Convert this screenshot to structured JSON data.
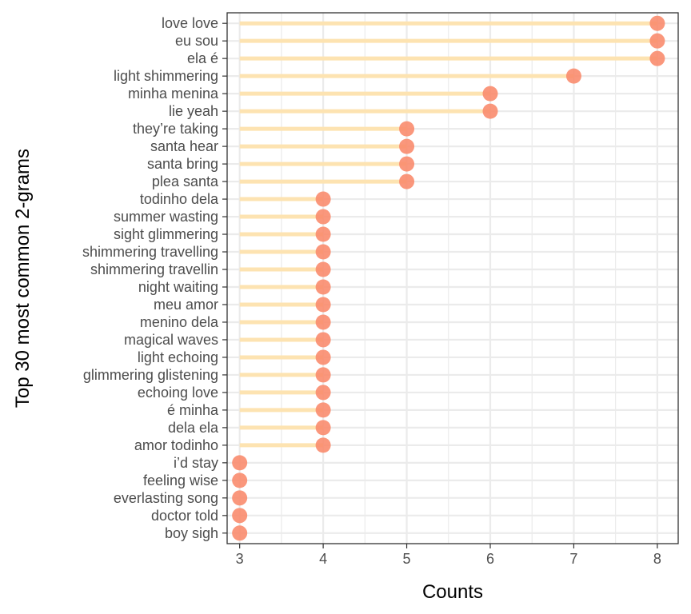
{
  "chart_data": {
    "type": "lollipop",
    "xlabel": "Counts",
    "ylabel": "Top 30 most common 2-grams",
    "xlim": [
      2.85,
      8.25
    ],
    "x_ticks": [
      3,
      4,
      5,
      6,
      7,
      8
    ],
    "grid": true,
    "baseline": 3,
    "colors": {
      "stem": "#FDE3B1",
      "point": "#FA8C6E",
      "grid": "#EBEBEB",
      "panel_border": "#333333",
      "tick_text": "#4D4D4D"
    },
    "categories": [
      "love love",
      "eu sou",
      "ela é",
      "light shimmering",
      "minha menina",
      "lie yeah",
      "they’re taking",
      "santa hear",
      "santa bring",
      "plea santa",
      "todinho dela",
      "summer wasting",
      "sight glimmering",
      "shimmering travelling",
      "shimmering travellin",
      "night waiting",
      "meu amor",
      "menino dela",
      "magical waves",
      "light echoing",
      "glimmering glistening",
      "echoing love",
      "é minha",
      "dela ela",
      "amor todinho",
      "i’d stay",
      "feeling wise",
      "everlasting song",
      "doctor told",
      "boy sigh"
    ],
    "values": [
      8,
      8,
      8,
      7,
      6,
      6,
      5,
      5,
      5,
      5,
      4,
      4,
      4,
      4,
      4,
      4,
      4,
      4,
      4,
      4,
      4,
      4,
      4,
      4,
      4,
      3,
      3,
      3,
      3,
      3
    ]
  }
}
